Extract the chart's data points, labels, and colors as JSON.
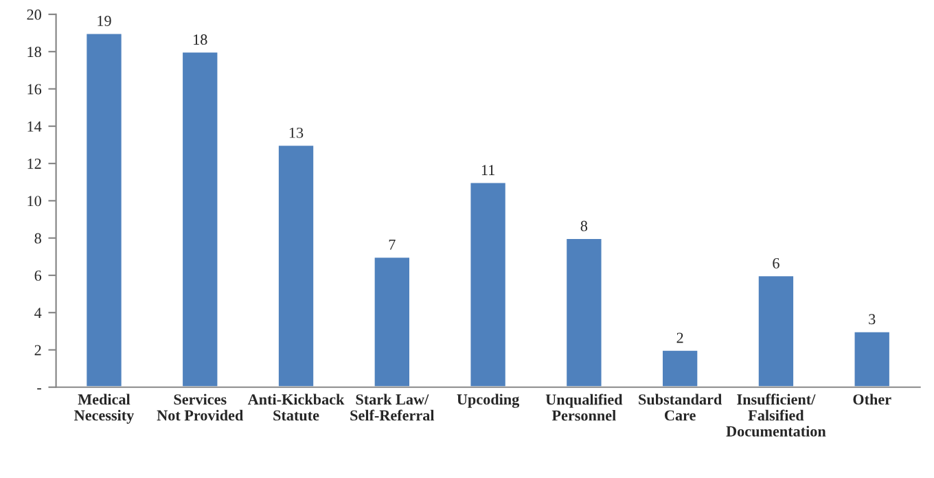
{
  "chart_data": {
    "type": "bar",
    "categories": [
      "Medical\nNecessity",
      "Services\nNot Provided",
      "Anti-Kickback\nStatute",
      "Stark Law/\nSelf-Referral",
      "Upcoding",
      "Unqualified\nPersonnel",
      "Substandard\nCare",
      "Insufficient/\nFalsified\nDocumentation",
      "Other"
    ],
    "values": [
      19,
      18,
      13,
      7,
      11,
      8,
      2,
      6,
      3
    ],
    "color": "#4f81bd",
    "ylim": [
      0,
      20
    ],
    "yticks": [
      {
        "value": 0,
        "label": "-"
      },
      2,
      4,
      6,
      8,
      10,
      12,
      14,
      16,
      18,
      20
    ],
    "data_labels": true,
    "grid": false
  }
}
